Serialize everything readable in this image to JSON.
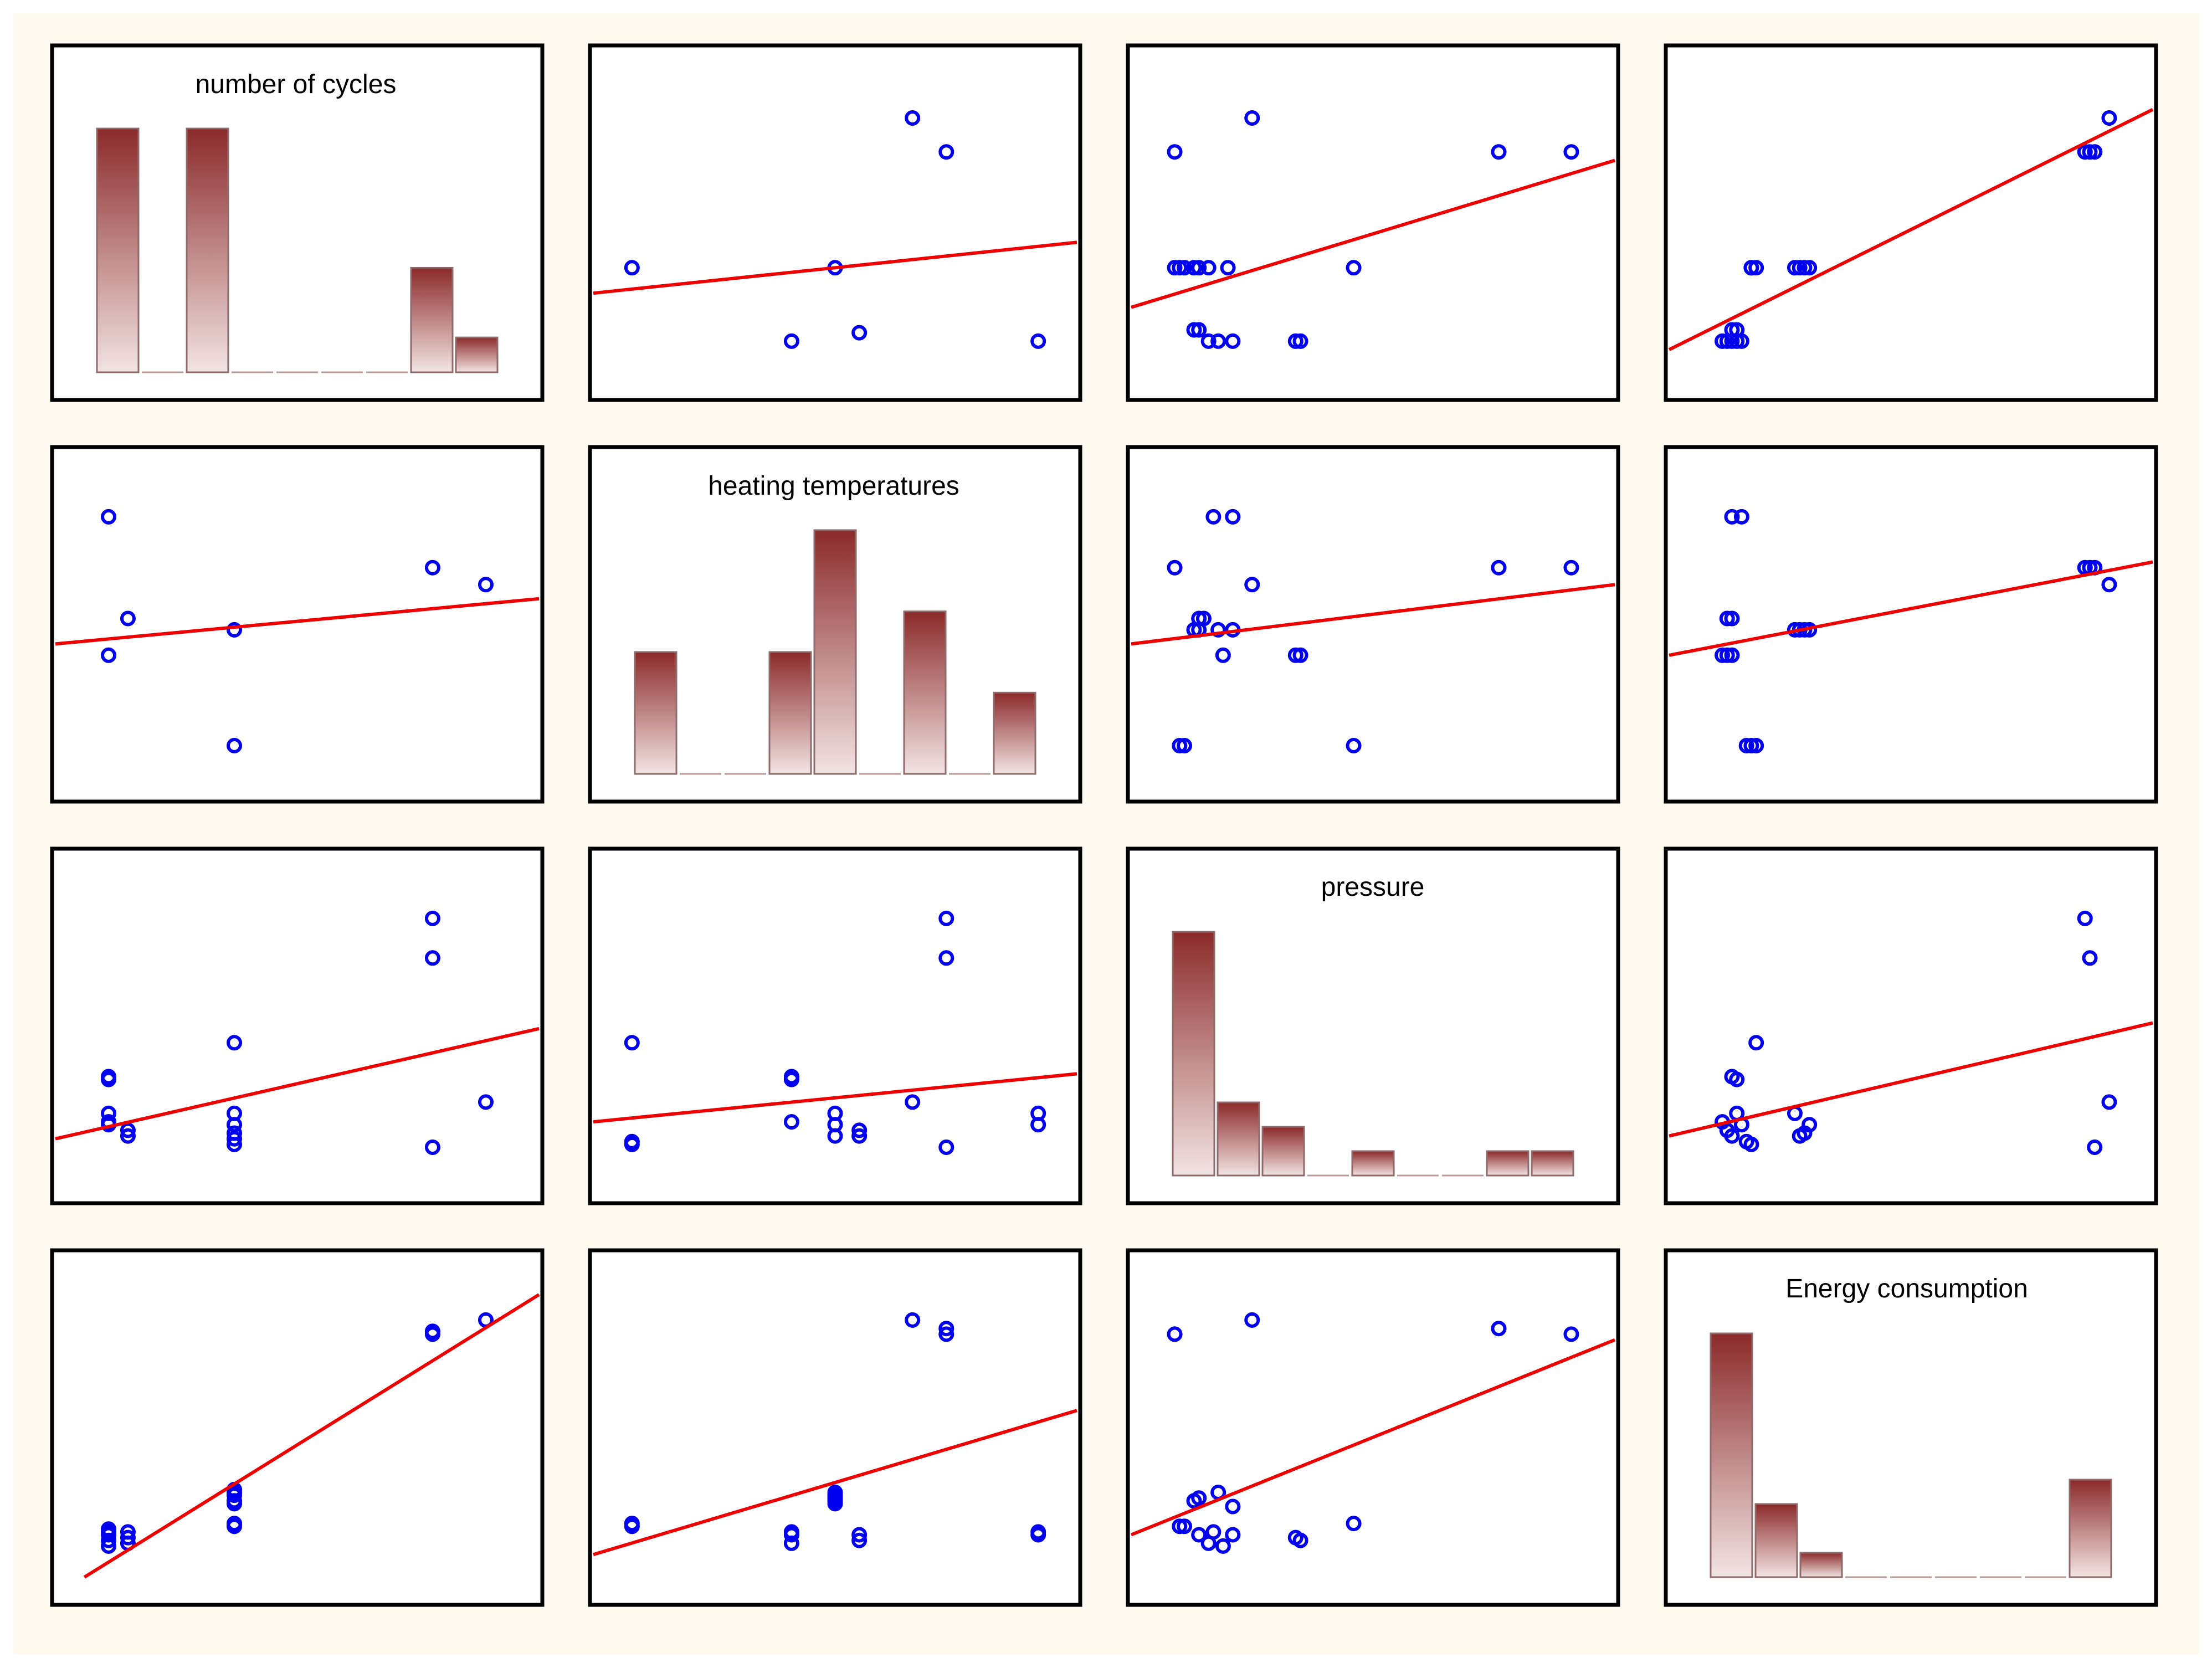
{
  "colors": {
    "background": "#fffaf0",
    "panel_fill": "#ffffff",
    "panel_border": "#000000",
    "point": "#0000ee",
    "fit_line": "#ee0000",
    "bar_top": "#8b2a2a",
    "bar_bottom": "#f2e4e4"
  },
  "chart_data": {
    "type": "scatter",
    "subtype": "scatter-matrix",
    "variables": [
      "number of cycles",
      "heating temperatures",
      "pressure",
      "Energy consumption"
    ],
    "scatter_range": [
      0,
      100
    ],
    "histograms": [
      {
        "title": "number of cycles",
        "values": [
          7,
          0,
          7,
          0,
          0,
          0,
          0,
          3,
          1
        ]
      },
      {
        "title": "heating temperatures",
        "values": [
          3,
          0,
          0,
          3,
          6,
          0,
          4,
          0,
          2
        ]
      },
      {
        "title": "pressure",
        "values": [
          10,
          3,
          2,
          0,
          1,
          0,
          0,
          1,
          1
        ]
      },
      {
        "title": "Energy consumption",
        "values": [
          10,
          3,
          1,
          0,
          0,
          0,
          0,
          0,
          4
        ]
      }
    ],
    "panels": [
      {
        "row": 0,
        "col": 1,
        "line": [
          0,
          28,
          100,
          46
        ],
        "points": [
          [
            8,
            37
          ],
          [
            50,
            37
          ],
          [
            41,
            11
          ],
          [
            55,
            14
          ],
          [
            66,
            90
          ],
          [
            73,
            78
          ],
          [
            92,
            11
          ]
        ]
      },
      {
        "row": 0,
        "col": 2,
        "line": [
          0,
          23,
          100,
          75
        ],
        "points": [
          [
            9,
            78
          ],
          [
            9,
            37
          ],
          [
            10,
            37
          ],
          [
            11,
            37
          ],
          [
            13,
            37
          ],
          [
            14,
            37
          ],
          [
            16,
            37
          ],
          [
            20,
            37
          ],
          [
            25,
            90
          ],
          [
            13,
            15
          ],
          [
            14,
            15
          ],
          [
            16,
            11
          ],
          [
            18,
            11
          ],
          [
            21,
            11
          ],
          [
            34,
            11
          ],
          [
            35,
            11
          ],
          [
            46,
            37
          ],
          [
            76,
            78
          ],
          [
            91,
            78
          ]
        ]
      },
      {
        "row": 0,
        "col": 3,
        "line": [
          0,
          8,
          100,
          93
        ],
        "points": [
          [
            11,
            11
          ],
          [
            12,
            11
          ],
          [
            13,
            11
          ],
          [
            14,
            11
          ],
          [
            15,
            11
          ],
          [
            13,
            15
          ],
          [
            14,
            15
          ],
          [
            17,
            37
          ],
          [
            17,
            37
          ],
          [
            18,
            37
          ],
          [
            26,
            37
          ],
          [
            27,
            37
          ],
          [
            28,
            37
          ],
          [
            29,
            37
          ],
          [
            86,
            78
          ],
          [
            87,
            78
          ],
          [
            88,
            78
          ],
          [
            91,
            90
          ]
        ]
      },
      {
        "row": 1,
        "col": 0,
        "line": [
          0,
          46,
          100,
          62
        ],
        "points": [
          [
            11,
            91
          ],
          [
            11,
            42
          ],
          [
            15,
            55
          ],
          [
            37,
            51
          ],
          [
            37,
            10
          ],
          [
            78,
            73
          ],
          [
            89,
            67
          ]
        ]
      },
      {
        "row": 1,
        "col": 2,
        "line": [
          0,
          46,
          100,
          67
        ],
        "points": [
          [
            9,
            73
          ],
          [
            10,
            10
          ],
          [
            11,
            10
          ],
          [
            13,
            51
          ],
          [
            14,
            51
          ],
          [
            14,
            55
          ],
          [
            15,
            55
          ],
          [
            17,
            91
          ],
          [
            18,
            51
          ],
          [
            19,
            42
          ],
          [
            21,
            91
          ],
          [
            21,
            51
          ],
          [
            25,
            67
          ],
          [
            34,
            42
          ],
          [
            35,
            42
          ],
          [
            46,
            10
          ],
          [
            76,
            73
          ],
          [
            91,
            73
          ]
        ]
      },
      {
        "row": 1,
        "col": 3,
        "line": [
          0,
          42,
          100,
          75
        ],
        "points": [
          [
            11,
            42
          ],
          [
            12,
            42
          ],
          [
            13,
            42
          ],
          [
            12,
            55
          ],
          [
            13,
            55
          ],
          [
            13,
            91
          ],
          [
            15,
            91
          ],
          [
            16,
            10
          ],
          [
            17,
            10
          ],
          [
            18,
            10
          ],
          [
            26,
            51
          ],
          [
            27,
            51
          ],
          [
            28,
            51
          ],
          [
            29,
            51
          ],
          [
            86,
            73
          ],
          [
            87,
            73
          ],
          [
            88,
            73
          ],
          [
            91,
            67
          ]
        ]
      },
      {
        "row": 2,
        "col": 0,
        "line": [
          0,
          13,
          100,
          52
        ],
        "points": [
          [
            11,
            35
          ],
          [
            11,
            34
          ],
          [
            11,
            22
          ],
          [
            11,
            19
          ],
          [
            11,
            18
          ],
          [
            15,
            16
          ],
          [
            15,
            14
          ],
          [
            37,
            47
          ],
          [
            37,
            22
          ],
          [
            37,
            18
          ],
          [
            37,
            15
          ],
          [
            37,
            13
          ],
          [
            37,
            11
          ],
          [
            78,
            91
          ],
          [
            78,
            77
          ],
          [
            78,
            10
          ],
          [
            89,
            26
          ]
        ]
      },
      {
        "row": 2,
        "col": 1,
        "line": [
          0,
          19,
          100,
          36
        ],
        "points": [
          [
            8,
            47
          ],
          [
            8,
            12
          ],
          [
            8,
            11
          ],
          [
            41,
            35
          ],
          [
            41,
            34
          ],
          [
            41,
            19
          ],
          [
            50,
            22
          ],
          [
            50,
            18
          ],
          [
            50,
            14
          ],
          [
            55,
            16
          ],
          [
            55,
            14
          ],
          [
            66,
            26
          ],
          [
            73,
            91
          ],
          [
            73,
            77
          ],
          [
            73,
            10
          ],
          [
            92,
            22
          ],
          [
            92,
            18
          ]
        ]
      },
      {
        "row": 2,
        "col": 3,
        "line": [
          0,
          14,
          100,
          54
        ],
        "points": [
          [
            11,
            19
          ],
          [
            12,
            16
          ],
          [
            13,
            14
          ],
          [
            13,
            35
          ],
          [
            14,
            34
          ],
          [
            14,
            22
          ],
          [
            15,
            18
          ],
          [
            16,
            12
          ],
          [
            17,
            11
          ],
          [
            18,
            47
          ],
          [
            26,
            22
          ],
          [
            27,
            14
          ],
          [
            28,
            15
          ],
          [
            29,
            18
          ],
          [
            86,
            91
          ],
          [
            87,
            77
          ],
          [
            88,
            10
          ],
          [
            91,
            26
          ]
        ]
      },
      {
        "row": 3,
        "col": 0,
        "line": [
          6,
          0,
          100,
          100
        ],
        "points": [
          [
            11,
            13
          ],
          [
            11,
            11
          ],
          [
            11,
            15
          ],
          [
            11,
            16
          ],
          [
            11,
            17
          ],
          [
            15,
            14
          ],
          [
            15,
            12
          ],
          [
            15,
            16
          ],
          [
            37,
            18
          ],
          [
            37,
            19
          ],
          [
            37,
            26
          ],
          [
            37,
            27
          ],
          [
            37,
            29
          ],
          [
            37,
            30
          ],
          [
            37,
            31
          ],
          [
            78,
            86
          ],
          [
            78,
            87
          ],
          [
            89,
            91
          ]
        ]
      },
      {
        "row": 3,
        "col": 1,
        "line": [
          0,
          8,
          100,
          59
        ],
        "points": [
          [
            8,
            18
          ],
          [
            8,
            19
          ],
          [
            41,
            12
          ],
          [
            41,
            15
          ],
          [
            41,
            16
          ],
          [
            50,
            26
          ],
          [
            50,
            27
          ],
          [
            50,
            28
          ],
          [
            50,
            29
          ],
          [
            50,
            30
          ],
          [
            55,
            13
          ],
          [
            55,
            15
          ],
          [
            66,
            91
          ],
          [
            73,
            86
          ],
          [
            73,
            88
          ],
          [
            92,
            15
          ],
          [
            92,
            16
          ]
        ]
      },
      {
        "row": 3,
        "col": 2,
        "line": [
          0,
          15,
          100,
          84
        ],
        "points": [
          [
            9,
            86
          ],
          [
            10,
            18
          ],
          [
            11,
            18
          ],
          [
            13,
            27
          ],
          [
            14,
            28
          ],
          [
            14,
            15
          ],
          [
            16,
            12
          ],
          [
            17,
            16
          ],
          [
            18,
            30
          ],
          [
            19,
            11
          ],
          [
            21,
            15
          ],
          [
            21,
            25
          ],
          [
            25,
            91
          ],
          [
            34,
            14
          ],
          [
            35,
            13
          ],
          [
            46,
            19
          ],
          [
            76,
            88
          ],
          [
            91,
            86
          ]
        ]
      }
    ]
  }
}
